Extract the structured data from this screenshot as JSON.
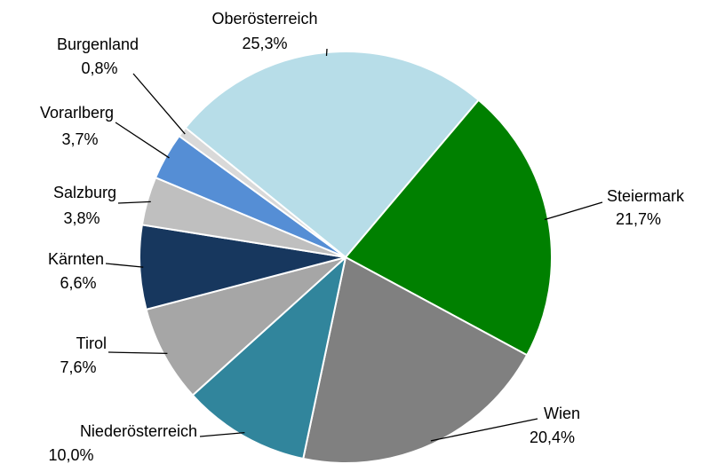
{
  "chart_data": {
    "type": "pie",
    "categories": [
      "Oberösterreich",
      "Steiermark",
      "Wien",
      "Niederösterreich",
      "Tirol",
      "Kärnten",
      "Salzburg",
      "Vorarlberg",
      "Burgenland"
    ],
    "values": [
      25.3,
      21.7,
      20.4,
      10.0,
      7.6,
      6.6,
      3.8,
      3.7,
      0.8
    ],
    "value_labels": [
      "25,3%",
      "21,7%",
      "20,4%",
      "10,0%",
      "7,6%",
      "6,6%",
      "3,8%",
      "3,7%",
      "0,8%"
    ],
    "colors": [
      "#b7dde8",
      "#008000",
      "#808080",
      "#31859c",
      "#a6a6a6",
      "#17375e",
      "#bfbfbf",
      "#558ed5",
      "#d9d9d9"
    ]
  }
}
